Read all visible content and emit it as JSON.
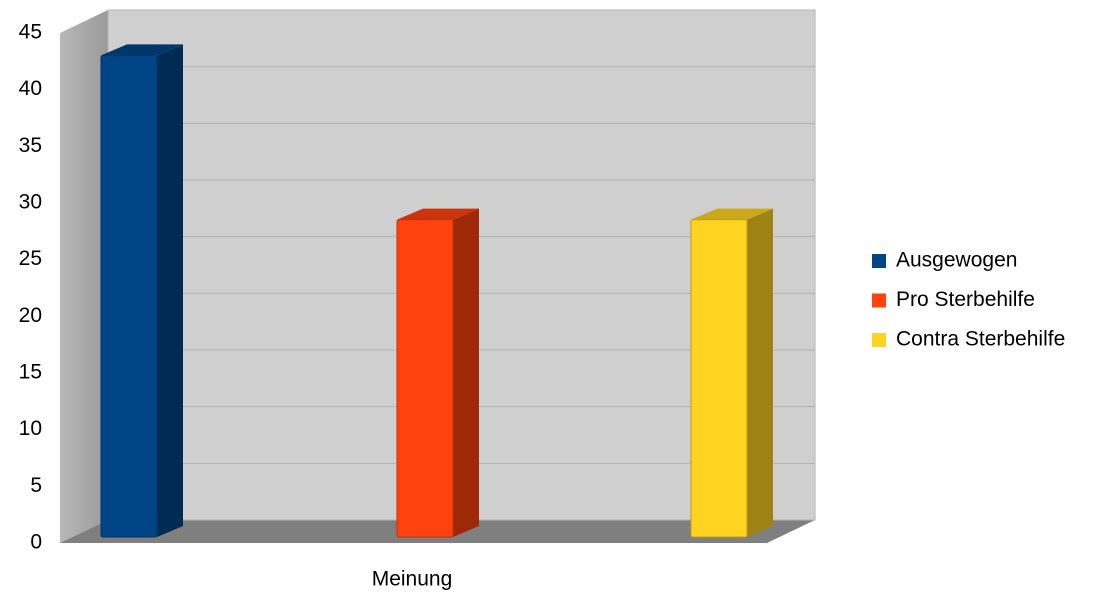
{
  "chart_data": {
    "type": "bar3d",
    "categories": [
      "Meinung"
    ],
    "series": [
      {
        "name": "Ausgewogen",
        "color": "#004586",
        "values": [
          42.5
        ]
      },
      {
        "name": "Pro Sterbehilfe",
        "color": "#ff420e",
        "values": [
          28
        ]
      },
      {
        "name": "Contra Sterbehilfe",
        "color": "#ffd320",
        "values": [
          28
        ]
      }
    ],
    "ylim": [
      0,
      45
    ],
    "yticks": [
      0,
      5,
      10,
      15,
      20,
      25,
      30,
      35,
      40,
      45
    ],
    "grid": true,
    "legend": "right"
  }
}
